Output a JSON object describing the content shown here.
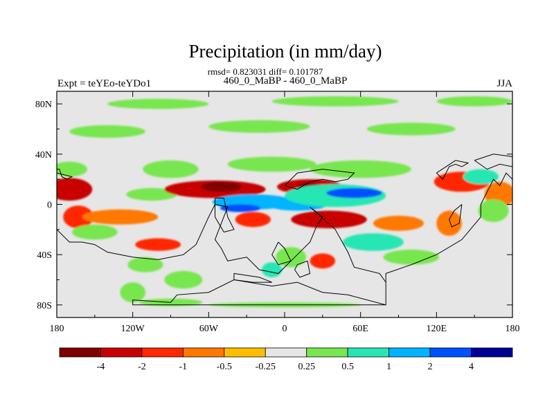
{
  "chart_data": {
    "type": "heatmap",
    "title": "Precipitation (in mm/day)",
    "subtitle": "rmsd= 0.823031 diff= 0.101787",
    "left_label": "Expt = teYEo-teYDo1",
    "center_label": "460_0_MaBP - 460_0_MaBP",
    "right_label": "JJA",
    "xlim": [
      -180,
      180
    ],
    "ylim": [
      -90,
      90
    ],
    "x_ticks": [
      {
        "value": -180,
        "label": "180"
      },
      {
        "value": -120,
        "label": "120W"
      },
      {
        "value": -60,
        "label": "60W"
      },
      {
        "value": 0,
        "label": "0"
      },
      {
        "value": 60,
        "label": "60E"
      },
      {
        "value": 120,
        "label": "120E"
      },
      {
        "value": 180,
        "label": "180"
      }
    ],
    "y_ticks": [
      {
        "value": 80,
        "label": "80N"
      },
      {
        "value": 40,
        "label": "40N"
      },
      {
        "value": 0,
        "label": "0"
      },
      {
        "value": -40,
        "label": "40S"
      },
      {
        "value": -80,
        "label": "80S"
      }
    ],
    "colorbar": {
      "colors": [
        "#800000",
        "#c80000",
        "#ff2800",
        "#ff7800",
        "#ffbe00",
        "#e6e6e6",
        "#78e650",
        "#28e6b4",
        "#00b4ff",
        "#0050ff",
        "#000096"
      ],
      "labels": [
        "-4",
        "-2",
        "-1",
        "-0.5",
        "-0.25",
        "0.25",
        "0.5",
        "1",
        "2",
        "4"
      ]
    },
    "background_color": "#e6e6e6",
    "anomalies": [
      {
        "lon": -170,
        "lat": 12,
        "rx": 18,
        "ry": 9,
        "level": -2
      },
      {
        "lon": -163,
        "lat": -10,
        "rx": 12,
        "ry": 9,
        "level": -1
      },
      {
        "lon": -170,
        "lat": 28,
        "rx": 14,
        "ry": 6,
        "level": 0.5
      },
      {
        "lon": -150,
        "lat": -22,
        "rx": 18,
        "ry": 6,
        "level": 0.5
      },
      {
        "lon": -130,
        "lat": -10,
        "rx": 30,
        "ry": 6,
        "level": -0.5
      },
      {
        "lon": -100,
        "lat": -32,
        "rx": 18,
        "ry": 5,
        "level": -1
      },
      {
        "lon": -110,
        "lat": -48,
        "rx": 14,
        "ry": 6,
        "level": 0.5
      },
      {
        "lon": -120,
        "lat": -70,
        "rx": 10,
        "ry": 8,
        "level": 0.5
      },
      {
        "lon": -80,
        "lat": -60,
        "rx": 15,
        "ry": 7,
        "level": 0.5
      },
      {
        "lon": -105,
        "lat": 8,
        "rx": 20,
        "ry": 5,
        "level": 0.5
      },
      {
        "lon": -55,
        "lat": 12,
        "rx": 40,
        "ry": 7,
        "level": -2
      },
      {
        "lon": -50,
        "lat": 14,
        "rx": 16,
        "ry": 4,
        "level": -4
      },
      {
        "lon": -90,
        "lat": 28,
        "rx": 22,
        "ry": 7,
        "level": 0.5
      },
      {
        "lon": 20,
        "lat": 14,
        "rx": 26,
        "ry": 6,
        "level": -2
      },
      {
        "lon": 20,
        "lat": 14,
        "rx": 10,
        "ry": 3,
        "level": -4
      },
      {
        "lon": -25,
        "lat": 2,
        "rx": 32,
        "ry": 6,
        "level": 2
      },
      {
        "lon": -35,
        "lat": -3,
        "rx": 16,
        "ry": 3,
        "level": 4
      },
      {
        "lon": 10,
        "lat": 0,
        "rx": 24,
        "ry": 5,
        "level": 2
      },
      {
        "lon": 40,
        "lat": 7,
        "rx": 40,
        "ry": 9,
        "level": 1
      },
      {
        "lon": 55,
        "lat": 9,
        "rx": 22,
        "ry": 4,
        "level": 4
      },
      {
        "lon": 60,
        "lat": 28,
        "rx": 40,
        "ry": 7,
        "level": 0.5
      },
      {
        "lon": -10,
        "lat": 32,
        "rx": 35,
        "ry": 6,
        "level": 0.5
      },
      {
        "lon": 35,
        "lat": -12,
        "rx": 30,
        "ry": 7,
        "level": -2
      },
      {
        "lon": -25,
        "lat": -12,
        "rx": 14,
        "ry": 6,
        "level": -1
      },
      {
        "lon": 90,
        "lat": -15,
        "rx": 20,
        "ry": 6,
        "level": -0.5
      },
      {
        "lon": 70,
        "lat": -30,
        "rx": 24,
        "ry": 7,
        "level": 1
      },
      {
        "lon": 100,
        "lat": -42,
        "rx": 22,
        "ry": 6,
        "level": 0.5
      },
      {
        "lon": 140,
        "lat": 18,
        "rx": 22,
        "ry": 8,
        "level": -1
      },
      {
        "lon": 155,
        "lat": 22,
        "rx": 14,
        "ry": 6,
        "level": 1
      },
      {
        "lon": 170,
        "lat": 8,
        "rx": 12,
        "ry": 10,
        "level": -0.5
      },
      {
        "lon": 165,
        "lat": -5,
        "rx": 12,
        "ry": 9,
        "level": 0.5
      },
      {
        "lon": 130,
        "lat": -15,
        "rx": 10,
        "ry": 10,
        "level": -0.5
      },
      {
        "lon": 30,
        "lat": -45,
        "rx": 10,
        "ry": 6,
        "level": -1
      },
      {
        "lon": 5,
        "lat": -42,
        "rx": 12,
        "ry": 8,
        "level": 0.5
      },
      {
        "lon": -10,
        "lat": -52,
        "rx": 8,
        "ry": 6,
        "level": 1
      },
      {
        "lon": 0,
        "lat": -80,
        "rx": 60,
        "ry": 2,
        "level": 0.5
      },
      {
        "lon": -90,
        "lat": -78,
        "rx": 25,
        "ry": 3,
        "level": 0.5
      },
      {
        "lon": -140,
        "lat": 58,
        "rx": 30,
        "ry": 5,
        "level": 0.5
      },
      {
        "lon": -20,
        "lat": 62,
        "rx": 40,
        "ry": 5,
        "level": 0.5
      },
      {
        "lon": 100,
        "lat": 60,
        "rx": 35,
        "ry": 5,
        "level": 0.5
      },
      {
        "lon": -100,
        "lat": 80,
        "rx": 40,
        "ry": 4,
        "level": 0.5
      },
      {
        "lon": 40,
        "lat": 82,
        "rx": 50,
        "ry": 4,
        "level": 0.5
      },
      {
        "lon": 150,
        "lat": 82,
        "rx": 30,
        "ry": 4,
        "level": 0.5
      }
    ],
    "landmass_outlines": [
      [
        [
          -180,
          -20
        ],
        [
          -170,
          -30
        ],
        [
          -160,
          -30
        ],
        [
          -150,
          -32
        ],
        [
          -140,
          -38
        ],
        [
          -120,
          -42
        ],
        [
          -100,
          -44
        ],
        [
          -80,
          -40
        ],
        [
          -70,
          -32
        ],
        [
          -60,
          -10
        ],
        [
          -55,
          0
        ],
        [
          -45,
          -2
        ],
        [
          -50,
          -15
        ],
        [
          -55,
          -28
        ],
        [
          -50,
          -35
        ],
        [
          -45,
          -45
        ],
        [
          -30,
          -42
        ],
        [
          -20,
          -52
        ],
        [
          -5,
          -55
        ],
        [
          10,
          -40
        ],
        [
          20,
          -30
        ],
        [
          25,
          -18
        ],
        [
          30,
          -10
        ],
        [
          20,
          -2
        ],
        [
          40,
          -20
        ],
        [
          50,
          -38
        ],
        [
          55,
          -50
        ],
        [
          75,
          -55
        ],
        [
          80,
          -62
        ],
        [
          80,
          -80
        ],
        [
          -120,
          -80
        ],
        [
          -120,
          -76
        ],
        [
          -90,
          -78
        ],
        [
          -85,
          -72
        ],
        [
          -60,
          -70
        ],
        [
          -40,
          -60
        ],
        [
          -10,
          -65
        ],
        [
          10,
          -62
        ],
        [
          30,
          -70
        ],
        [
          50,
          -72
        ],
        [
          80,
          -80
        ],
        [
          80,
          -55
        ],
        [
          100,
          -48
        ],
        [
          120,
          -40
        ],
        [
          140,
          -28
        ],
        [
          155,
          -10
        ],
        [
          155,
          0
        ],
        [
          165,
          20
        ],
        [
          170,
          15
        ],
        [
          175,
          25
        ],
        [
          180,
          20
        ]
      ],
      [
        [
          -180,
          28
        ],
        [
          -178,
          28
        ],
        [
          -176,
          22
        ],
        [
          -172,
          20
        ],
        [
          -168,
          22
        ],
        [
          -180,
          25
        ]
      ],
      [
        [
          -55,
          5
        ],
        [
          -48,
          5
        ],
        [
          -45,
          -10
        ],
        [
          -40,
          -20
        ],
        [
          -48,
          -22
        ],
        [
          -55,
          -10
        ],
        [
          -55,
          5
        ]
      ],
      [
        [
          -5,
          -30
        ],
        [
          0,
          -35
        ],
        [
          5,
          -45
        ],
        [
          -5,
          -48
        ],
        [
          -10,
          -40
        ],
        [
          -5,
          -30
        ]
      ],
      [
        [
          10,
          -48
        ],
        [
          18,
          -45
        ],
        [
          20,
          -55
        ],
        [
          12,
          -58
        ],
        [
          8,
          -52
        ],
        [
          10,
          -48
        ]
      ],
      [
        [
          -40,
          -55
        ],
        [
          -20,
          -58
        ],
        [
          -10,
          -62
        ],
        [
          -25,
          -62
        ],
        [
          -40,
          -60
        ],
        [
          -40,
          -55
        ]
      ],
      [
        [
          0,
          15
        ],
        [
          10,
          12
        ],
        [
          20,
          18
        ],
        [
          30,
          20
        ],
        [
          40,
          18
        ],
        [
          50,
          20
        ],
        [
          55,
          25
        ],
        [
          30,
          28
        ],
        [
          10,
          25
        ],
        [
          0,
          15
        ]
      ],
      [
        [
          140,
          0
        ],
        [
          138,
          -15
        ],
        [
          132,
          -18
        ],
        [
          130,
          -12
        ],
        [
          134,
          -5
        ],
        [
          140,
          0
        ]
      ],
      [
        [
          120,
          25
        ],
        [
          125,
          20
        ],
        [
          130,
          30
        ],
        [
          135,
          32
        ],
        [
          140,
          30
        ],
        [
          145,
          33
        ],
        [
          135,
          35
        ],
        [
          120,
          25
        ]
      ],
      [
        [
          150,
          35
        ],
        [
          160,
          28
        ],
        [
          170,
          32
        ],
        [
          180,
          30
        ],
        [
          180,
          38
        ],
        [
          165,
          40
        ],
        [
          150,
          35
        ]
      ]
    ]
  }
}
